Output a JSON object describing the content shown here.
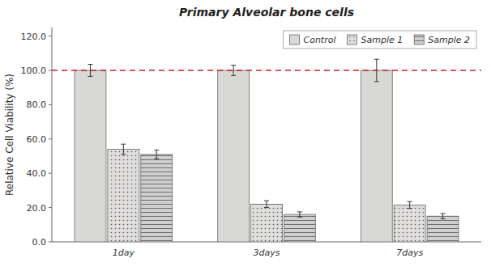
{
  "chart_data": {
    "type": "bar",
    "title": "Primary Alveolar bone cells",
    "ylabel": "Relative Cell Viability (%)",
    "categories": [
      "1day",
      "3days",
      "7days"
    ],
    "series": [
      {
        "name": "Control",
        "color": "#d8d8d5",
        "values": [
          100.0,
          100.0,
          100.0
        ],
        "errors": [
          3.5,
          3.0,
          6.5
        ]
      },
      {
        "name": "Sample 1",
        "color": "#e0dedd",
        "values": [
          54.0,
          22.0,
          21.5
        ],
        "errors": [
          3.0,
          2.0,
          2.0
        ]
      },
      {
        "name": "Sample 2",
        "color": "#d0cece",
        "values": [
          51.0,
          16.0,
          15.0
        ],
        "errors": [
          2.5,
          1.5,
          1.5
        ]
      }
    ],
    "reference_line": {
      "value": 100.0,
      "color": "#cc2222",
      "line_style": "dashed"
    },
    "ylim": [
      0,
      125
    ],
    "yticks": [
      {
        "value": 0,
        "label": "0.0"
      },
      {
        "value": 20,
        "label": "20.0"
      },
      {
        "value": 40,
        "label": "40.0"
      },
      {
        "value": 60,
        "label": "60.0"
      },
      {
        "value": 80,
        "label": "80.0"
      },
      {
        "value": 100,
        "label": "100.0"
      },
      {
        "value": 120,
        "label": "120.0"
      }
    ],
    "grid": false,
    "legend": "upper right"
  }
}
